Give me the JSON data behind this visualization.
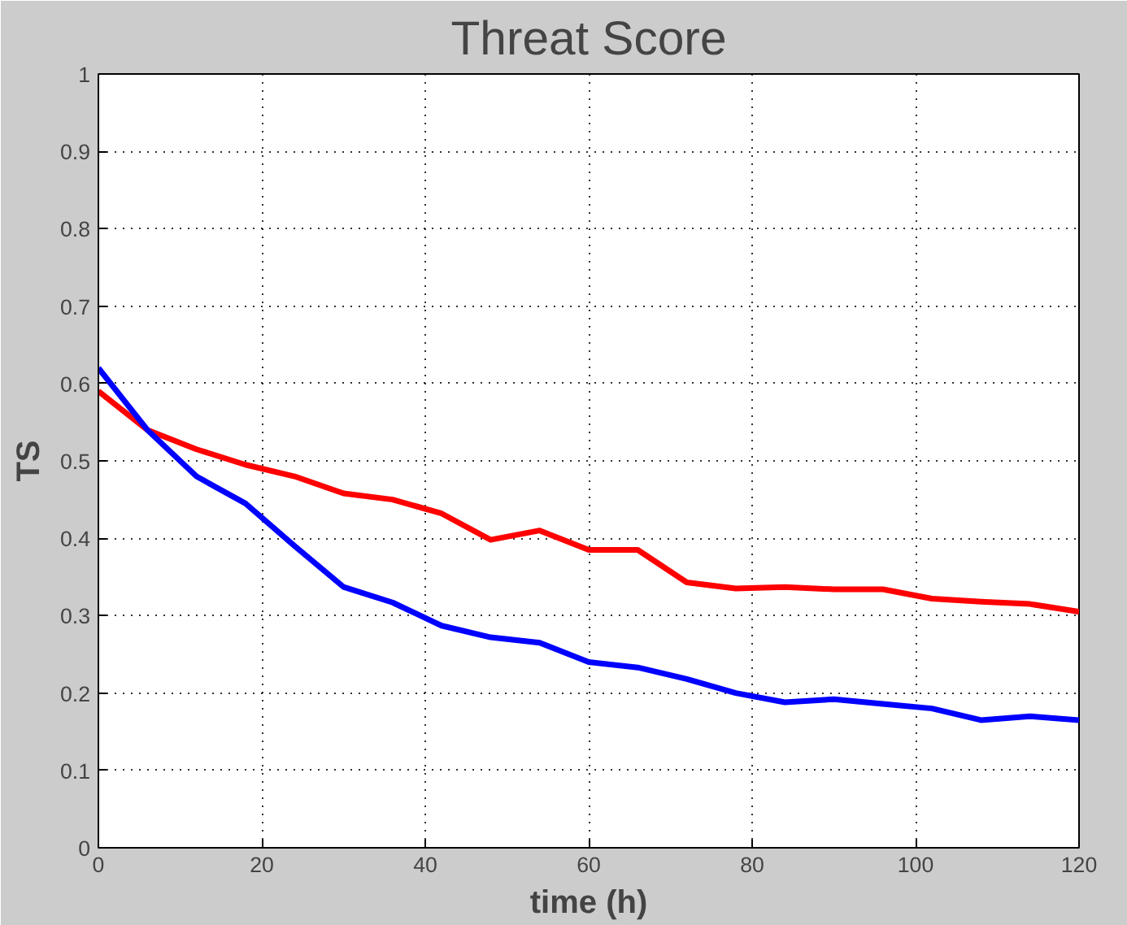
{
  "chart_data": {
    "type": "line",
    "title": "Threat Score",
    "xlabel": "time (h)",
    "ylabel": "TS",
    "x": [
      0,
      6,
      12,
      18,
      24,
      30,
      36,
      42,
      48,
      54,
      60,
      66,
      72,
      78,
      84,
      90,
      96,
      102,
      108,
      114,
      120
    ],
    "series": [
      {
        "color": "#ff0000",
        "values": [
          0.59,
          0.54,
          0.515,
          0.495,
          0.48,
          0.458,
          0.45,
          0.432,
          0.398,
          0.41,
          0.385,
          0.385,
          0.343,
          0.335,
          0.337,
          0.334,
          0.334,
          0.322,
          0.318,
          0.315,
          0.305
        ]
      },
      {
        "color": "#0000ff",
        "values": [
          0.62,
          0.54,
          0.48,
          0.445,
          0.39,
          0.337,
          0.317,
          0.287,
          0.272,
          0.265,
          0.24,
          0.233,
          0.218,
          0.2,
          0.188,
          0.192,
          0.186,
          0.18,
          0.165,
          0.17,
          0.165
        ]
      }
    ],
    "xlim": [
      0,
      120
    ],
    "xticks": [
      0,
      20,
      40,
      60,
      80,
      100,
      120
    ],
    "ylim": [
      0,
      1
    ],
    "yticks": [
      0,
      0.1,
      0.2,
      0.3,
      0.4,
      0.5,
      0.6,
      0.7,
      0.8,
      0.9,
      1
    ],
    "grid": true,
    "line_style": "solid",
    "marker": "none"
  }
}
